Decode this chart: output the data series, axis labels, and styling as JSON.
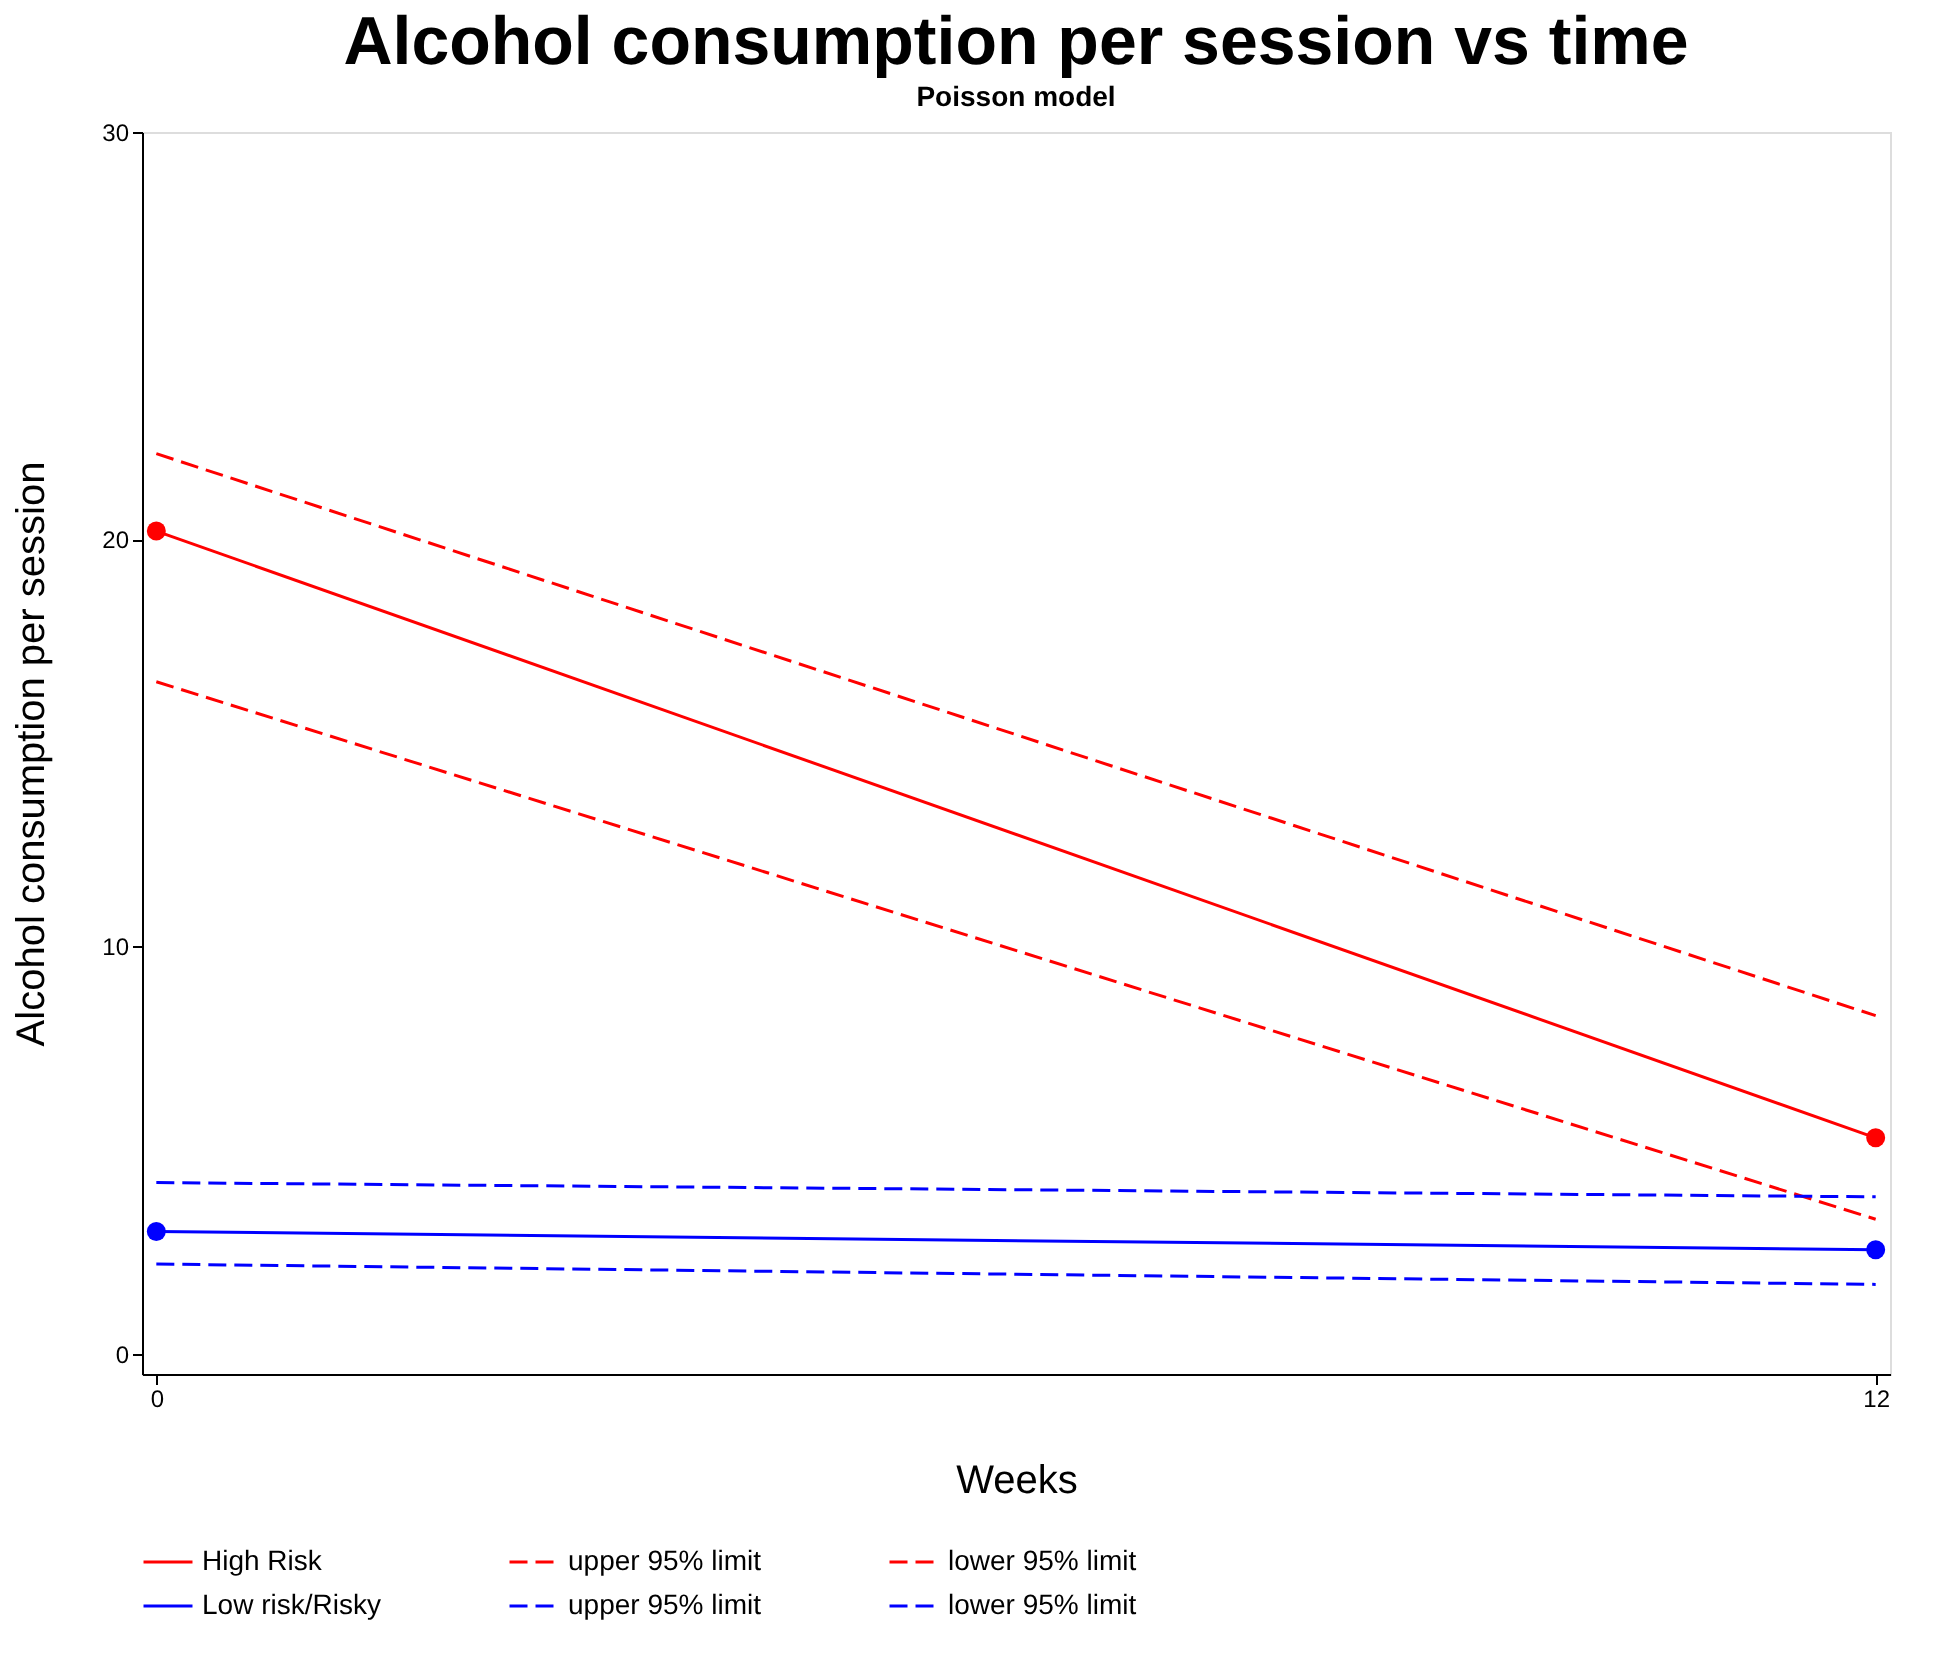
{
  "chart_data": {
    "type": "line",
    "title": "Alcohol consumption per session vs time",
    "subtitle": "Poisson model",
    "xlabel": "Weeks",
    "ylabel": "Alcohol consumption per session",
    "x": [
      0,
      12
    ],
    "xlim": [
      -0.1,
      12.1
    ],
    "xticks": [
      0,
      12
    ],
    "ylim": [
      -0.5,
      30
    ],
    "yticks": [
      0,
      10,
      20,
      30
    ],
    "grid": false,
    "legend": "bottom",
    "series": [
      {
        "name": "High Risk",
        "color": "#ff0000",
        "values": [
          20.2,
          5.3
        ],
        "line_style": "solid",
        "marker": "circle"
      },
      {
        "name": "upper 95% limit",
        "color": "#ff0000",
        "values": [
          22.1,
          8.3
        ],
        "line_style": "dashed",
        "marker": "none"
      },
      {
        "name": "lower 95% limit",
        "color": "#ff0000",
        "values": [
          16.5,
          3.3
        ],
        "line_style": "dashed",
        "marker": "none"
      },
      {
        "name": "Low risk/Risky",
        "color": "#0000ff",
        "values": [
          3.0,
          2.55
        ],
        "line_style": "solid",
        "marker": "circle"
      },
      {
        "name": "upper 95% limit",
        "color": "#0000ff",
        "values": [
          4.2,
          3.85
        ],
        "line_style": "dashed",
        "marker": "none"
      },
      {
        "name": "lower 95% limit",
        "color": "#0000ff",
        "values": [
          2.2,
          1.7
        ],
        "line_style": "dashed",
        "marker": "none"
      }
    ]
  }
}
